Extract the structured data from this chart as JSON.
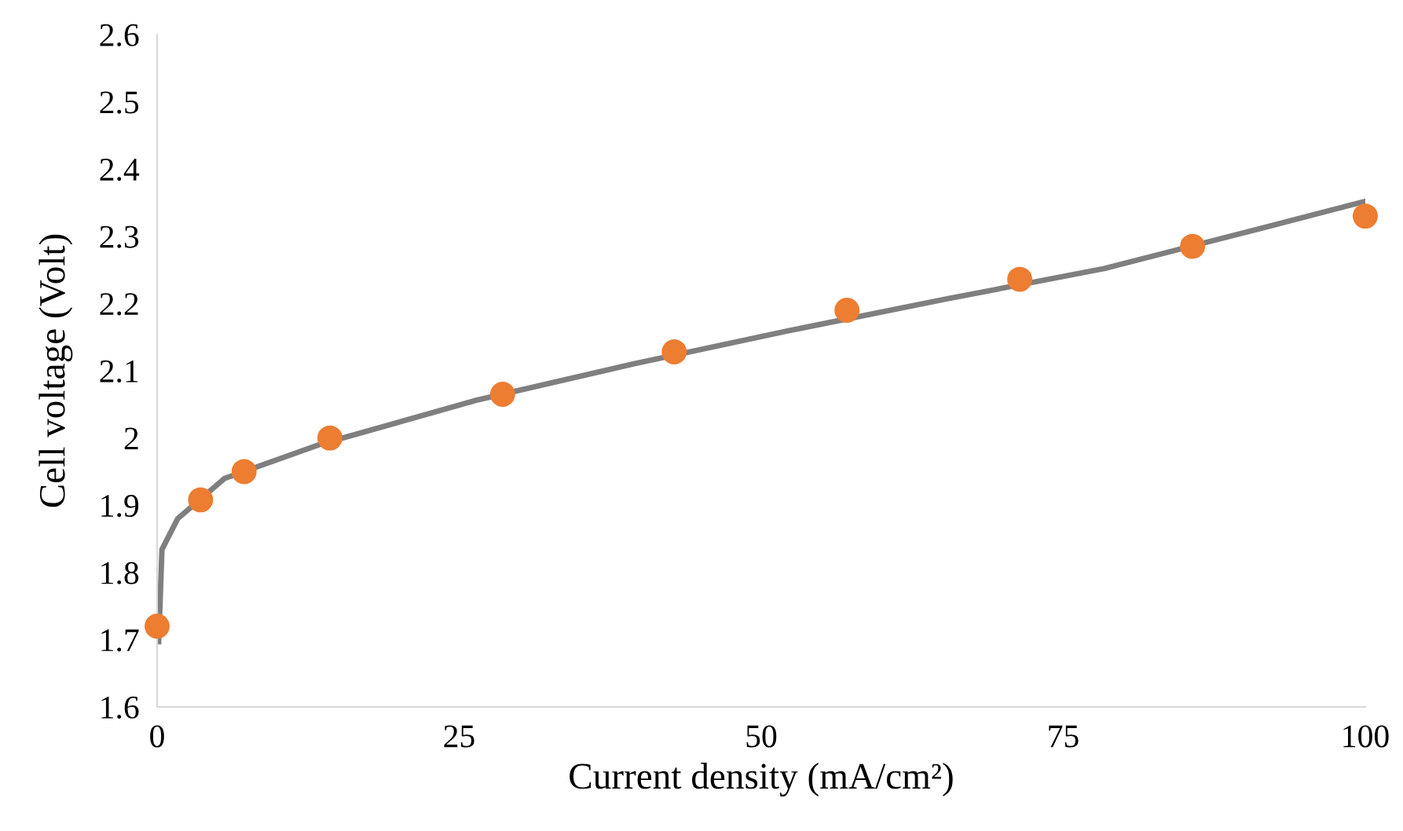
{
  "chart_data": {
    "type": "scatter",
    "xlabel": "Current density (mA/cm²)",
    "ylabel": "Cell voltage (Volt)",
    "xlim": [
      0,
      100
    ],
    "xticks": [
      0,
      25,
      50,
      75,
      100
    ],
    "ylim": [
      1.6,
      2.6
    ],
    "yticks": [
      1.6,
      1.7,
      1.8,
      1.9,
      {
        "value": 2.0,
        "label": "2"
      },
      2.1,
      2.2,
      2.3,
      2.4,
      2.5,
      2.6
    ],
    "grid": false,
    "legend": false,
    "series": [
      {
        "type": "line",
        "color": "#7f7f7f",
        "marker": "none",
        "line_style": "solid",
        "x": [
          0.13,
          0.4,
          1.7,
          5.6,
          13.4,
          26.4,
          39.4,
          52.4,
          65.4,
          78.4,
          91.4,
          100
        ],
        "values": [
          1.697,
          1.834,
          1.88,
          1.94,
          1.99,
          2.056,
          2.11,
          2.16,
          2.207,
          2.252,
          2.312,
          2.352
        ]
      },
      {
        "color": "#ed7d31",
        "marker": "circle",
        "x": [
          0,
          3.6,
          7.2,
          14.3,
          28.6,
          42.8,
          57.1,
          71.4,
          85.7,
          100
        ],
        "values": [
          1.72,
          1.908,
          1.95,
          2.0,
          2.065,
          2.128,
          2.19,
          2.236,
          2.285,
          2.33
        ]
      }
    ]
  }
}
